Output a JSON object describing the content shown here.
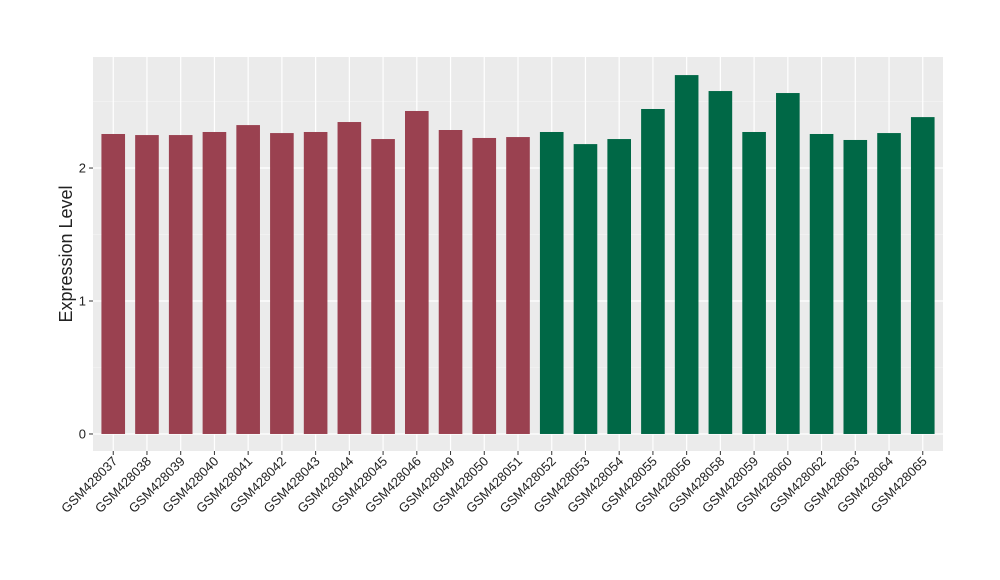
{
  "chart_data": {
    "type": "bar",
    "y_label": "Expression Level",
    "categories": [
      "GSM428037",
      "GSM428038",
      "GSM428039",
      "GSM428040",
      "GSM428041",
      "GSM428042",
      "GSM428043",
      "GSM428044",
      "GSM428045",
      "GSM428046",
      "GSM428049",
      "GSM428050",
      "GSM428051",
      "GSM428052",
      "GSM428053",
      "GSM428054",
      "GSM428055",
      "GSM428056",
      "GSM428058",
      "GSM428059",
      "GSM428060",
      "GSM428062",
      "GSM428063",
      "GSM428064",
      "GSM428065"
    ],
    "values": [
      2.256,
      2.248,
      2.248,
      2.271,
      2.323,
      2.263,
      2.271,
      2.346,
      2.218,
      2.429,
      2.286,
      2.226,
      2.233,
      2.271,
      2.18,
      2.218,
      2.444,
      2.699,
      2.579,
      2.271,
      2.564,
      2.256,
      2.211,
      2.263,
      2.383
    ],
    "colors": [
      "#9a4150",
      "#9a4150",
      "#9a4150",
      "#9a4150",
      "#9a4150",
      "#9a4150",
      "#9a4150",
      "#9a4150",
      "#9a4150",
      "#9a4150",
      "#9a4150",
      "#9a4150",
      "#9a4150",
      "#006846",
      "#006846",
      "#006846",
      "#006846",
      "#006846",
      "#006846",
      "#006846",
      "#006846",
      "#006846",
      "#006846",
      "#006846",
      "#006846"
    ],
    "ylim": [
      -0.128,
      2.835
    ],
    "yticks": [
      0,
      1,
      2
    ],
    "minor_yticks": [
      0.5,
      1.5,
      2.5
    ],
    "grid": true
  }
}
